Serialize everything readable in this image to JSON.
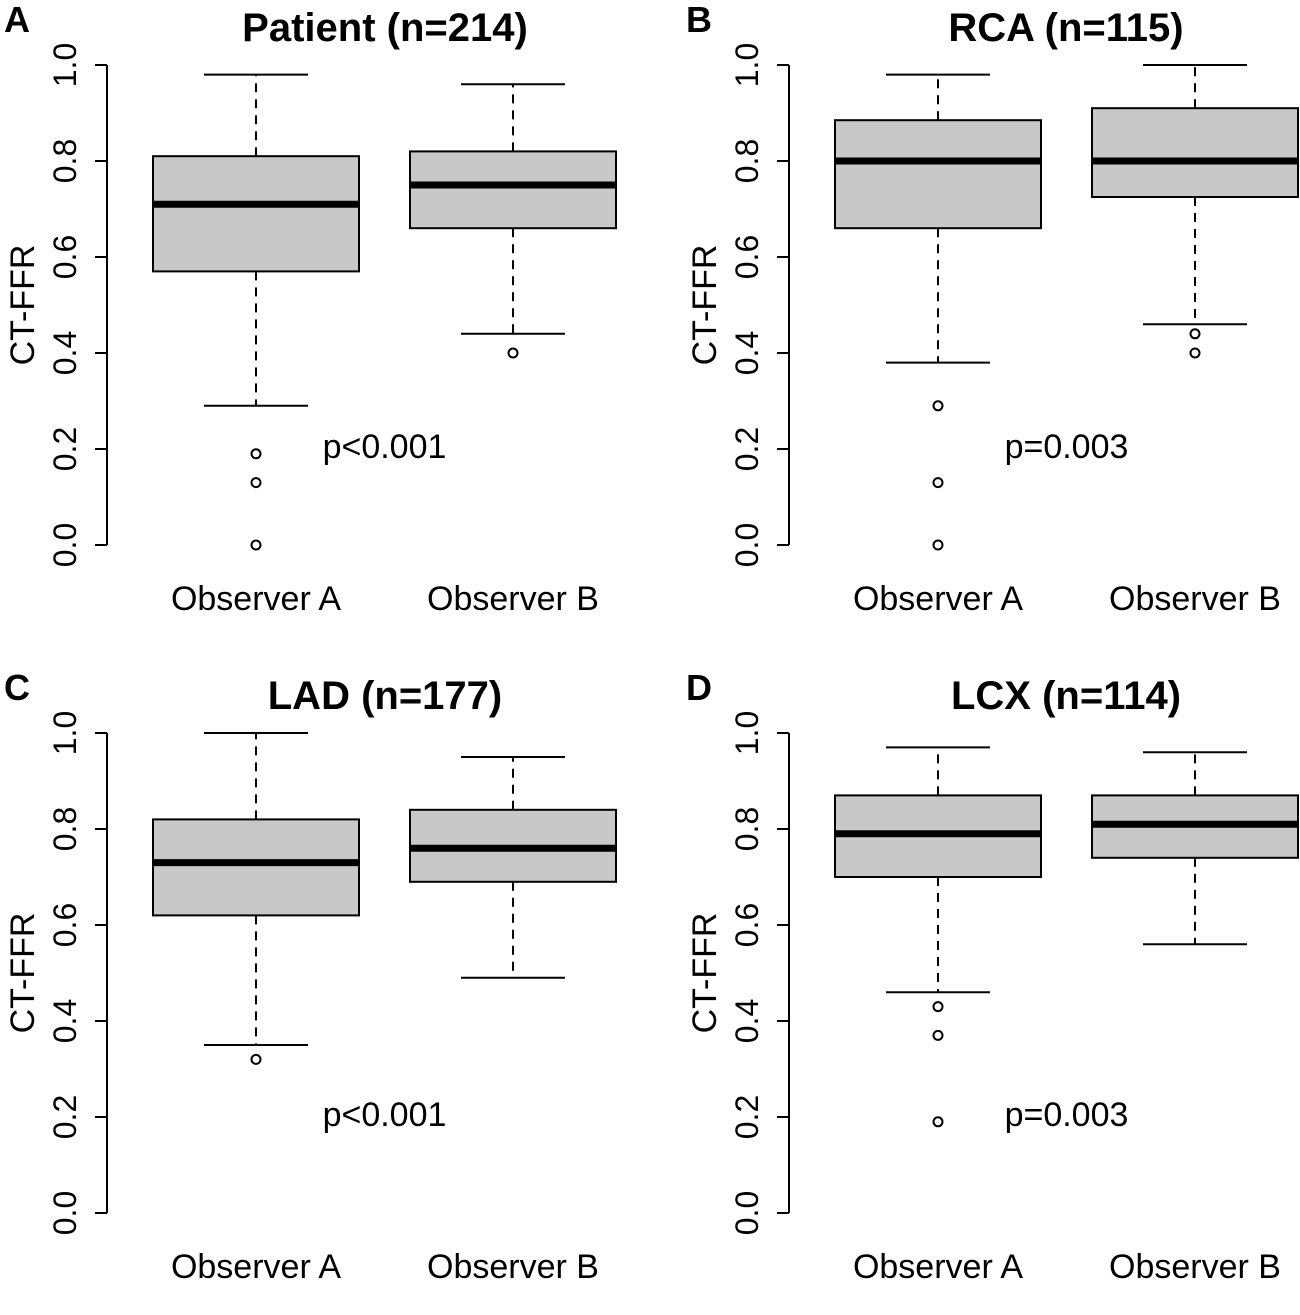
{
  "chart_data": [
    {
      "type": "box",
      "panel_label": "A",
      "title": "Patient (n=214)",
      "ylabel": "CT-FFR",
      "xlabel": "",
      "ylim": [
        0.0,
        1.0
      ],
      "y_ticks": [
        "0.0",
        "0.2",
        "0.4",
        "0.6",
        "0.8",
        "1.0"
      ],
      "categories": [
        "Observer A",
        "Observer B"
      ],
      "boxes": [
        {
          "name": "Observer A",
          "whisker_low": 0.29,
          "q1": 0.57,
          "median": 0.71,
          "q3": 0.81,
          "whisker_high": 0.98,
          "outliers": [
            0.19,
            0.13,
            0.0
          ]
        },
        {
          "name": "Observer B",
          "whisker_low": 0.44,
          "q1": 0.66,
          "median": 0.75,
          "q3": 0.82,
          "whisker_high": 0.96,
          "outliers": [
            0.4
          ]
        }
      ],
      "annotation": "p<0.001",
      "annotation_at": {
        "x": 1.5,
        "y": 0.2
      }
    },
    {
      "type": "box",
      "panel_label": "B",
      "title": "RCA (n=115)",
      "ylabel": "CT-FFR",
      "xlabel": "",
      "ylim": [
        0.0,
        1.0
      ],
      "y_ticks": [
        "0.0",
        "0.2",
        "0.4",
        "0.6",
        "0.8",
        "1.0"
      ],
      "categories": [
        "Observer A",
        "Observer B"
      ],
      "boxes": [
        {
          "name": "Observer A",
          "whisker_low": 0.38,
          "q1": 0.66,
          "median": 0.8,
          "q3": 0.885,
          "whisker_high": 0.98,
          "outliers": [
            0.29,
            0.13,
            0.0
          ]
        },
        {
          "name": "Observer B",
          "whisker_low": 0.46,
          "q1": 0.725,
          "median": 0.8,
          "q3": 0.91,
          "whisker_high": 1.0,
          "outliers": [
            0.44,
            0.4
          ]
        }
      ],
      "annotation": "p=0.003",
      "annotation_at": {
        "x": 1.5,
        "y": 0.2
      }
    },
    {
      "type": "box",
      "panel_label": "C",
      "title": "LAD (n=177)",
      "ylabel": "CT-FFR",
      "xlabel": "",
      "ylim": [
        0.0,
        1.0
      ],
      "y_ticks": [
        "0.0",
        "0.2",
        "0.4",
        "0.6",
        "0.8",
        "1.0"
      ],
      "categories": [
        "Observer A",
        "Observer B"
      ],
      "boxes": [
        {
          "name": "Observer A",
          "whisker_low": 0.35,
          "q1": 0.62,
          "median": 0.73,
          "q3": 0.82,
          "whisker_high": 1.0,
          "outliers": [
            0.32
          ]
        },
        {
          "name": "Observer B",
          "whisker_low": 0.49,
          "q1": 0.69,
          "median": 0.76,
          "q3": 0.84,
          "whisker_high": 0.95,
          "outliers": []
        }
      ],
      "annotation": "p<0.001",
      "annotation_at": {
        "x": 1.5,
        "y": 0.2
      }
    },
    {
      "type": "box",
      "panel_label": "D",
      "title": "LCX (n=114)",
      "ylabel": "CT-FFR",
      "xlabel": "",
      "ylim": [
        0.0,
        1.0
      ],
      "y_ticks": [
        "0.0",
        "0.2",
        "0.4",
        "0.6",
        "0.8",
        "1.0"
      ],
      "categories": [
        "Observer A",
        "Observer B"
      ],
      "boxes": [
        {
          "name": "Observer A",
          "whisker_low": 0.46,
          "q1": 0.7,
          "median": 0.79,
          "q3": 0.87,
          "whisker_high": 0.97,
          "outliers": [
            0.43,
            0.37,
            0.19
          ]
        },
        {
          "name": "Observer B",
          "whisker_low": 0.56,
          "q1": 0.74,
          "median": 0.81,
          "q3": 0.87,
          "whisker_high": 0.96,
          "outliers": []
        }
      ],
      "annotation": "p=0.003",
      "annotation_at": {
        "x": 1.5,
        "y": 0.2
      }
    }
  ],
  "style": {
    "box_fill": "#c8c8c8",
    "line_color": "#000000",
    "background": "#ffffff"
  }
}
